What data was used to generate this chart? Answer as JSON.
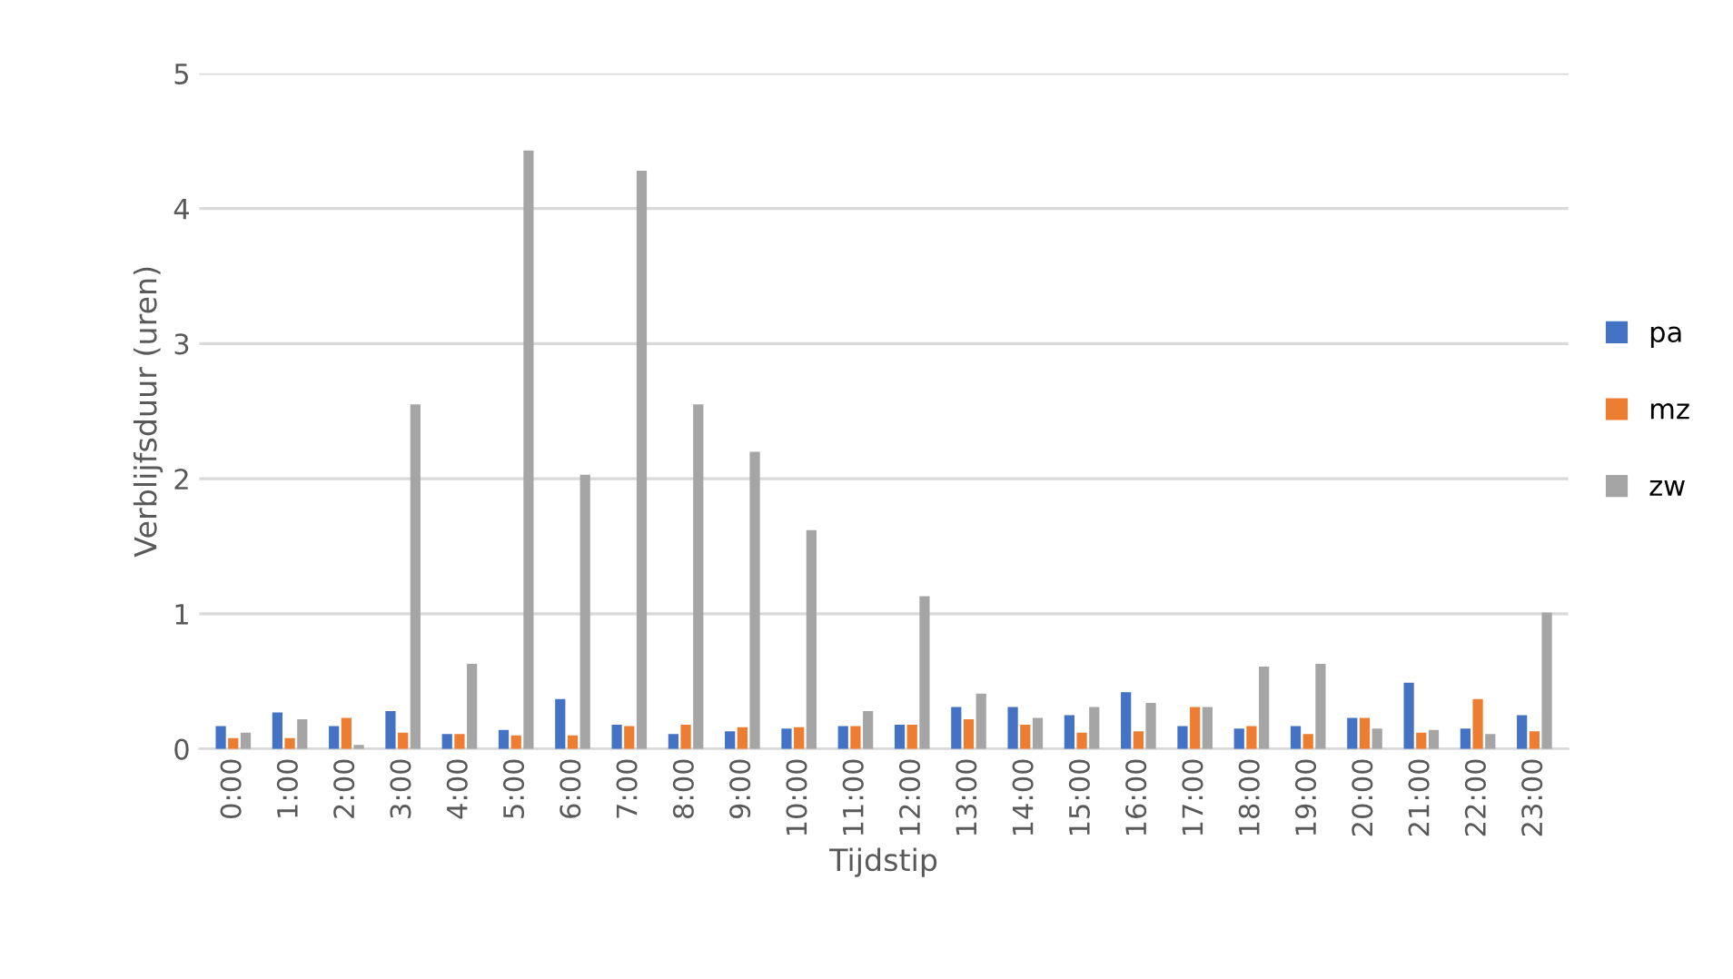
{
  "chart_data": {
    "type": "bar",
    "xlabel": "Tijdstip",
    "ylabel": "Verblijfsduur (uren)",
    "categories": [
      "0:00",
      "1:00",
      "2:00",
      "3:00",
      "4:00",
      "5:00",
      "6:00",
      "7:00",
      "8:00",
      "9:00",
      "10:00",
      "11:00",
      "12:00",
      "13:00",
      "14:00",
      "15:00",
      "16:00",
      "17:00",
      "18:00",
      "19:00",
      "20:00",
      "21:00",
      "22:00",
      "23:00"
    ],
    "series": [
      {
        "name": "pa",
        "color": "#4472c4",
        "values": [
          0.17,
          0.27,
          0.17,
          0.28,
          0.11,
          0.14,
          0.37,
          0.18,
          0.11,
          0.13,
          0.15,
          0.17,
          0.18,
          0.31,
          0.31,
          0.25,
          0.42,
          0.17,
          0.15,
          0.17,
          0.23,
          0.49,
          0.15,
          0.25
        ]
      },
      {
        "name": "mz",
        "color": "#ed7d31",
        "values": [
          0.08,
          0.08,
          0.23,
          0.12,
          0.11,
          0.1,
          0.1,
          0.17,
          0.18,
          0.16,
          0.16,
          0.17,
          0.18,
          0.22,
          0.18,
          0.12,
          0.13,
          0.31,
          0.17,
          0.11,
          0.23,
          0.12,
          0.37,
          0.13
        ]
      },
      {
        "name": "zw",
        "color": "#a5a5a5",
        "values": [
          0.12,
          0.22,
          0.03,
          2.55,
          0.63,
          4.43,
          2.03,
          4.28,
          2.55,
          2.2,
          1.62,
          0.28,
          1.13,
          0.41,
          0.23,
          0.31,
          0.34,
          0.31,
          0.61,
          0.63,
          0.15,
          0.14,
          0.11,
          1.01
        ]
      }
    ],
    "ylim": [
      0,
      5
    ],
    "yticks": [
      0,
      1,
      2,
      3,
      4,
      5
    ],
    "grid": "y",
    "legend": "right"
  }
}
